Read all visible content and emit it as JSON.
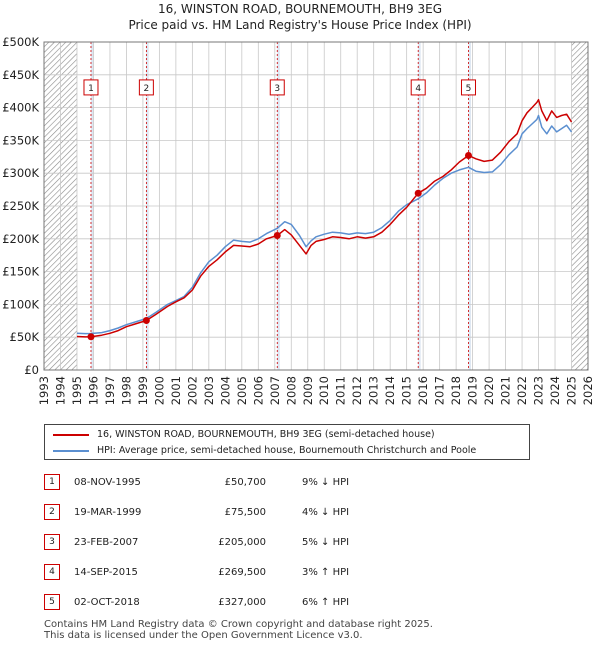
{
  "title_line1": "16, WINSTON ROAD, BOURNEMOUTH, BH9 3EG",
  "title_line2": "Price paid vs. HM Land Registry's House Price Index (HPI)",
  "legend": {
    "property": "16, WINSTON ROAD, BOURNEMOUTH, BH9 3EG (semi-detached house)",
    "hpi": "HPI: Average price, semi-detached house, Bournemouth Christchurch and Poole"
  },
  "colors": {
    "property": "#cc0000",
    "hpi": "#5b8fd0",
    "band": "#dde6f2",
    "grid": "#c8c8c8",
    "hatch": "#8a8a8a"
  },
  "sales": [
    {
      "num": "1",
      "date": "08-NOV-1995",
      "price": "£50,700",
      "hpi": "9% ↓ HPI"
    },
    {
      "num": "2",
      "date": "19-MAR-1999",
      "price": "£75,500",
      "hpi": "4% ↓ HPI"
    },
    {
      "num": "3",
      "date": "23-FEB-2007",
      "price": "£205,000",
      "hpi": "5% ↓ HPI"
    },
    {
      "num": "4",
      "date": "14-SEP-2015",
      "price": "£269,500",
      "hpi": "3% ↑ HPI"
    },
    {
      "num": "5",
      "date": "02-OCT-2018",
      "price": "£327,000",
      "hpi": "6% ↑ HPI"
    }
  ],
  "footer": {
    "line1": "Contains HM Land Registry data © Crown copyright and database right 2025.",
    "line2": "This data is licensed under the Open Government Licence v3.0."
  },
  "chart_data": {
    "type": "line",
    "title": "16, WINSTON ROAD, BOURNEMOUTH, BH9 3EG",
    "subtitle": "Price paid vs. HM Land Registry's House Price Index (HPI)",
    "xlabel": "",
    "ylabel": "",
    "xlim": [
      1993,
      2026
    ],
    "ylim": [
      0,
      500000
    ],
    "x_ticks": [
      1993,
      1994,
      1995,
      1996,
      1997,
      1998,
      1999,
      2000,
      2001,
      2002,
      2003,
      2004,
      2005,
      2006,
      2007,
      2008,
      2009,
      2010,
      2011,
      2012,
      2013,
      2014,
      2015,
      2016,
      2017,
      2018,
      2019,
      2020,
      2021,
      2022,
      2023,
      2024,
      2025,
      2026
    ],
    "y_ticks": [
      0,
      50000,
      100000,
      150000,
      200000,
      250000,
      300000,
      350000,
      400000,
      450000,
      500000
    ],
    "y_tick_labels": [
      "£0",
      "£50K",
      "£100K",
      "£150K",
      "£200K",
      "£250K",
      "£300K",
      "£350K",
      "£400K",
      "£450K",
      "£500K"
    ],
    "hatched_ranges": [
      [
        1993,
        1995.0
      ],
      [
        2025.0,
        2026
      ]
    ],
    "shaded_bands": [
      [
        1995.85,
        1996.0
      ],
      [
        1999.2,
        1999.35
      ],
      [
        2007.15,
        2007.3
      ],
      [
        2015.7,
        2015.85
      ],
      [
        2018.75,
        2018.9
      ]
    ],
    "markers": [
      {
        "label": "1",
        "x": 1995.85,
        "y": 50700
      },
      {
        "label": "2",
        "x": 1999.21,
        "y": 75500
      },
      {
        "label": "3",
        "x": 2007.15,
        "y": 205000
      },
      {
        "label": "4",
        "x": 2015.7,
        "y": 269500
      },
      {
        "label": "5",
        "x": 2018.75,
        "y": 327000
      }
    ],
    "marker_label_y": 430000,
    "series": [
      {
        "name": "16, WINSTON ROAD, BOURNEMOUTH, BH9 3EG (semi-detached house)",
        "x": [
          1995.0,
          1995.5,
          1995.85,
          1996.5,
          1997.0,
          1997.5,
          1998.0,
          1998.5,
          1999.21,
          1999.8,
          2000.5,
          2001.0,
          2001.5,
          2002.0,
          2002.5,
          2003.0,
          2003.5,
          2004.0,
          2004.5,
          2005.0,
          2005.5,
          2006.0,
          2006.5,
          2007.15,
          2007.6,
          2008.0,
          2008.5,
          2008.9,
          2009.2,
          2009.5,
          2010.0,
          2010.5,
          2011.0,
          2011.5,
          2012.0,
          2012.5,
          2013.0,
          2013.5,
          2014.0,
          2014.5,
          2015.0,
          2015.7,
          2016.2,
          2016.7,
          2017.2,
          2017.7,
          2018.2,
          2018.75,
          2019.2,
          2019.7,
          2020.2,
          2020.7,
          2021.2,
          2021.7,
          2022.0,
          2022.3,
          2022.6,
          2022.9,
          2023.0,
          2023.2,
          2023.5,
          2023.8,
          2024.1,
          2024.4,
          2024.7,
          2025.0
        ],
        "y": [
          51000,
          50500,
          50700,
          53000,
          56000,
          60000,
          66000,
          70000,
          75500,
          85000,
          97000,
          104000,
          110000,
          122000,
          143000,
          158000,
          168000,
          180000,
          190000,
          189000,
          188000,
          192000,
          200000,
          205000,
          214000,
          206000,
          190000,
          177000,
          190000,
          196000,
          199000,
          203000,
          202000,
          200000,
          203000,
          201000,
          203000,
          210000,
          222000,
          236000,
          248000,
          269500,
          277000,
          288000,
          295000,
          305000,
          317000,
          327000,
          322000,
          318000,
          320000,
          332000,
          348000,
          360000,
          380000,
          392000,
          400000,
          408000,
          412000,
          395000,
          380000,
          395000,
          385000,
          388000,
          390000,
          378000
        ]
      },
      {
        "name": "HPI: Average price, semi-detached house, Bournemouth Christchurch and Poole",
        "x": [
          1995.0,
          1995.5,
          1995.85,
          1996.5,
          1997.0,
          1997.5,
          1998.0,
          1998.5,
          1999.21,
          1999.8,
          2000.5,
          2001.0,
          2001.5,
          2002.0,
          2002.5,
          2003.0,
          2003.5,
          2004.0,
          2004.5,
          2005.0,
          2005.5,
          2006.0,
          2006.5,
          2007.15,
          2007.6,
          2008.0,
          2008.5,
          2008.9,
          2009.2,
          2009.5,
          2010.0,
          2010.5,
          2011.0,
          2011.5,
          2012.0,
          2012.5,
          2013.0,
          2013.5,
          2014.0,
          2014.5,
          2015.0,
          2015.7,
          2016.2,
          2016.7,
          2017.2,
          2017.7,
          2018.2,
          2018.75,
          2019.2,
          2019.7,
          2020.2,
          2020.7,
          2021.2,
          2021.7,
          2022.0,
          2022.3,
          2022.6,
          2022.9,
          2023.0,
          2023.2,
          2023.5,
          2023.8,
          2024.1,
          2024.4,
          2024.7,
          2025.0
        ],
        "y": [
          56000,
          55500,
          55700,
          57000,
          60000,
          64000,
          69000,
          73000,
          78500,
          88000,
          100000,
          106000,
          112000,
          126000,
          148000,
          165000,
          175000,
          188000,
          198000,
          196000,
          195000,
          200000,
          208000,
          216000,
          226000,
          222000,
          205000,
          188000,
          197000,
          203000,
          207000,
          210000,
          209000,
          207000,
          209000,
          208000,
          210000,
          217000,
          228000,
          242000,
          252000,
          261000,
          270000,
          282000,
          292000,
          300000,
          305000,
          309000,
          303000,
          301000,
          302000,
          313000,
          328000,
          340000,
          360000,
          368000,
          375000,
          382000,
          388000,
          370000,
          360000,
          372000,
          363000,
          368000,
          373000,
          363000
        ]
      }
    ]
  }
}
